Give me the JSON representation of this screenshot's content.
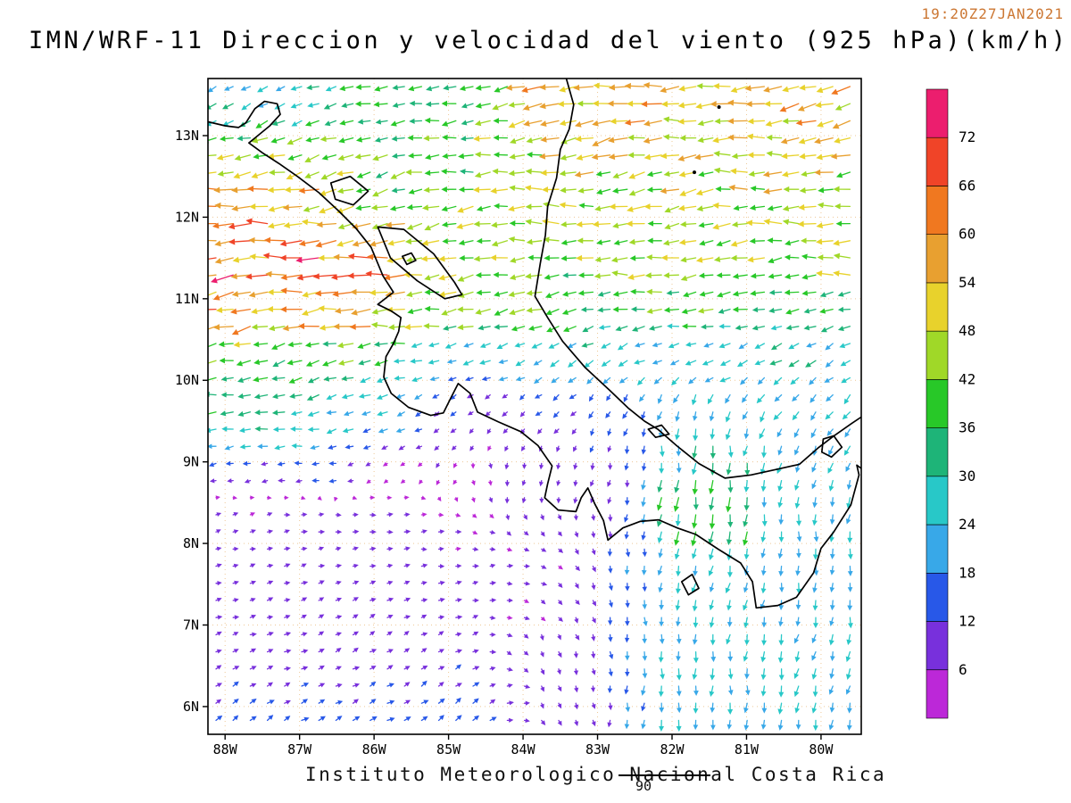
{
  "header": {
    "title": "IMN/WRF-11 Direccion y velocidad del viento (925 hPa)(km/h)",
    "timestamp": "19:20Z27JAN2021"
  },
  "footer": {
    "credit": "Instituto Meteorologico Nacional Costa Rica",
    "overlay_label": "90"
  },
  "axes": {
    "lat_tick_labels": [
      "13N",
      "12N",
      "11N",
      "10N",
      "9N",
      "8N",
      "7N",
      "6N"
    ],
    "lat_tick_values": [
      13,
      12,
      11,
      10,
      9,
      8,
      7,
      6
    ],
    "lon_tick_labels": [
      "88W",
      "87W",
      "86W",
      "85W",
      "84W",
      "83W",
      "82W",
      "81W",
      "80W"
    ],
    "lon_tick_values": [
      -88,
      -87,
      -86,
      -85,
      -84,
      -83,
      -82,
      -81,
      -80
    ],
    "lon_range": [
      -88.23,
      -79.46
    ],
    "lat_range": [
      5.66,
      13.7
    ]
  },
  "colorbar": {
    "tick_labels": [
      "72",
      "66",
      "60",
      "54",
      "48",
      "42",
      "36",
      "30",
      "24",
      "18",
      "12",
      "6"
    ],
    "colors_low_to_high": [
      "#bc28d8",
      "#7830dc",
      "#2858e8",
      "#38a8e8",
      "#28c8c8",
      "#1eb478",
      "#28c828",
      "#a0d828",
      "#e8d22c",
      "#e8a030",
      "#f07820",
      "#f04428",
      "#ec1e6e"
    ]
  },
  "chart_data": {
    "type": "vector-field-map",
    "title": "IMN/WRF-11 Direccion y velocidad del viento (925 hPa)(km/h)",
    "valid_time": "19:20Z27JAN2021",
    "variable": "wind direction and speed",
    "level": "925 hPa",
    "units": "km/h",
    "speed_bins_kmh": [
      6,
      12,
      18,
      24,
      30,
      36,
      42,
      48,
      54,
      60,
      66,
      72
    ],
    "lon_range_deg": [
      -88.23,
      -79.46
    ],
    "lat_range_deg": [
      5.66,
      13.7
    ],
    "conventions": "dir = direction wind blows toward, degrees math convention (0=E, 90=N); spd in km/h",
    "flow_regions": [
      {
        "name": "top-left-cyan",
        "lat": [
          12.9,
          13.8
        ],
        "lon": [
          -88.3,
          -86.5
        ],
        "dir": 203,
        "spd": 26
      },
      {
        "name": "top-mid-green",
        "lat": [
          12.9,
          13.8
        ],
        "lon": [
          -86.5,
          -84.2
        ],
        "dir": 193,
        "spd": 36
      },
      {
        "name": "top-right-yellow",
        "lat": [
          12.9,
          13.8
        ],
        "lon": [
          -84.2,
          -79.4
        ],
        "dir": 188,
        "spd": 55
      },
      {
        "name": "nicaragua-pacific",
        "lat": [
          11.9,
          12.9
        ],
        "lon": [
          -88.3,
          -86.3
        ],
        "dir": 189,
        "spd": 55
      },
      {
        "name": "nicaragua-inland",
        "lat": [
          11.9,
          12.9
        ],
        "lon": [
          -86.3,
          -84.2
        ],
        "dir": 191,
        "spd": 40
      },
      {
        "name": "caribbean-north",
        "lat": [
          11.9,
          12.9
        ],
        "lon": [
          -84.2,
          -79.4
        ],
        "dir": 186,
        "spd": 47
      },
      {
        "name": "papagayo-jet",
        "lat": [
          10.8,
          11.7
        ],
        "lon": [
          -88.3,
          -85.6
        ],
        "dir": 186,
        "spd": 64,
        "w": 1.5
      },
      {
        "name": "lake-district",
        "lat": [
          10.9,
          11.9
        ],
        "lon": [
          -85.6,
          -84.6
        ],
        "dir": 188,
        "spd": 48
      },
      {
        "name": "caribbean-central",
        "lat": [
          10.9,
          11.9
        ],
        "lon": [
          -84.6,
          -79.4
        ],
        "dir": 185,
        "spd": 44
      },
      {
        "name": "guanacaste-pacific",
        "lat": [
          10.3,
          10.9
        ],
        "lon": [
          -88.3,
          -85.6
        ],
        "dir": 191,
        "spd": 45
      },
      {
        "name": "costa-rica-north",
        "lat": [
          10.3,
          10.9
        ],
        "lon": [
          -85.6,
          -83.6
        ],
        "dir": 193,
        "spd": 36
      },
      {
        "name": "caribbean-coast-cr",
        "lat": [
          10.3,
          10.9
        ],
        "lon": [
          -83.6,
          -79.4
        ],
        "dir": 197,
        "spd": 29
      },
      {
        "name": "pacific-west-green",
        "lat": [
          9.7,
          10.3
        ],
        "lon": [
          -88.3,
          -85.5
        ],
        "dir": 192,
        "spd": 33
      },
      {
        "name": "central-valley-weak",
        "lat": [
          9.7,
          10.3
        ],
        "lon": [
          -85.5,
          -83.5
        ],
        "dir": 218,
        "spd": 13
      },
      {
        "name": "limon-offshore",
        "lat": [
          9.7,
          10.3
        ],
        "lon": [
          -83.5,
          -81.0
        ],
        "dir": 212,
        "spd": 22
      },
      {
        "name": "caribbean-east",
        "lat": [
          9.7,
          10.3
        ],
        "lon": [
          -81.0,
          -79.4
        ],
        "dir": 218,
        "spd": 27
      },
      {
        "name": "west-basin-green",
        "lat": [
          8.9,
          9.7
        ],
        "lon": [
          -88.3,
          -86.5
        ],
        "dir": 192,
        "spd": 31
      },
      {
        "name": "west-basin-cyan",
        "lat": [
          8.9,
          9.7
        ],
        "lon": [
          -86.5,
          -85.0
        ],
        "dir": 202,
        "spd": 16
      },
      {
        "name": "lee-weak-purple",
        "lat": [
          8.6,
          9.7
        ],
        "lon": [
          -85.0,
          -82.9
        ],
        "dir": 240,
        "spd": 8
      },
      {
        "name": "bocas-blue",
        "lat": [
          8.9,
          9.7
        ],
        "lon": [
          -82.9,
          -82.1
        ],
        "dir": 262,
        "spd": 15
      },
      {
        "name": "chiriqui-gap",
        "lat": [
          8.6,
          9.7
        ],
        "lon": [
          -82.1,
          -80.9
        ],
        "dir": 263,
        "spd": 30,
        "w": 1.2
      },
      {
        "name": "panama-mid",
        "lat": [
          8.6,
          9.7
        ],
        "lon": [
          -80.9,
          -79.4
        ],
        "dir": 252,
        "spd": 23
      },
      {
        "name": "gulf-chiriqui-gusts",
        "lat": [
          8.2,
          8.6
        ],
        "lon": [
          -82.0,
          -81.1
        ],
        "dir": 258,
        "spd": 46,
        "w": 3
      },
      {
        "name": "southwest-return-flow",
        "lat": [
          8.1,
          8.9
        ],
        "lon": [
          -88.3,
          -84.6
        ],
        "dir": 8,
        "spd": 7
      },
      {
        "name": "osa-weak",
        "lat": [
          8.1,
          8.9
        ],
        "lon": [
          -84.6,
          -82.9
        ],
        "dir": 278,
        "spd": 9
      },
      {
        "name": "burica-blue",
        "lat": [
          8.1,
          8.9
        ],
        "lon": [
          -82.9,
          -82.1
        ],
        "dir": 268,
        "spd": 13
      },
      {
        "name": "chiriqui-south",
        "lat": [
          8.1,
          8.6
        ],
        "lon": [
          -82.1,
          -80.9
        ],
        "dir": 262,
        "spd": 19
      },
      {
        "name": "azuero-east",
        "lat": [
          8.1,
          8.9
        ],
        "lon": [
          -80.9,
          -79.4
        ],
        "dir": 258,
        "spd": 25
      },
      {
        "name": "south-basin-east-flow",
        "lat": [
          7.2,
          8.1
        ],
        "lon": [
          -88.3,
          -83.5
        ],
        "dir": 12,
        "spd": 8
      },
      {
        "name": "south-central-weak",
        "lat": [
          7.2,
          8.1
        ],
        "lon": [
          -83.5,
          -82.5
        ],
        "dir": 282,
        "spd": 11
      },
      {
        "name": "gulf-panama-south",
        "lat": [
          7.2,
          8.1
        ],
        "lon": [
          -82.5,
          -79.4
        ],
        "dir": 265,
        "spd": 22
      },
      {
        "name": "bottom-edge-blue",
        "lat": [
          5.6,
          6.1
        ],
        "lon": [
          -88.3,
          -84.2
        ],
        "dir": 32,
        "spd": 15,
        "w": 1.5
      },
      {
        "name": "bottom-west-ne-flow",
        "lat": [
          6.1,
          7.2
        ],
        "lon": [
          -88.3,
          -84.2
        ],
        "dir": 25,
        "spd": 10
      },
      {
        "name": "bottom-central-weak",
        "lat": [
          5.6,
          7.2
        ],
        "lon": [
          -84.2,
          -82.6
        ],
        "dir": 290,
        "spd": 9
      },
      {
        "name": "bottom-right-teal",
        "lat": [
          5.6,
          7.2
        ],
        "lon": [
          -82.6,
          -79.4
        ],
        "dir": 262,
        "spd": 24
      }
    ]
  },
  "map": {
    "gridline_color": "#eec896",
    "coast_color": "#000000",
    "coastlines": [
      [
        [
          -88.23,
          13.17
        ],
        [
          -88.0,
          13.12
        ],
        [
          -87.82,
          13.1
        ],
        [
          -87.72,
          13.16
        ],
        [
          -87.6,
          13.33
        ],
        [
          -87.47,
          13.42
        ],
        [
          -87.3,
          13.39
        ],
        [
          -87.26,
          13.26
        ],
        [
          -87.4,
          13.12
        ],
        [
          -87.56,
          13.0
        ],
        [
          -87.68,
          12.91
        ],
        [
          -87.5,
          12.79
        ],
        [
          -87.28,
          12.66
        ],
        [
          -87.03,
          12.5
        ],
        [
          -86.74,
          12.3
        ],
        [
          -86.48,
          12.08
        ],
        [
          -86.24,
          11.86
        ],
        [
          -86.04,
          11.63
        ],
        [
          -85.88,
          11.28
        ],
        [
          -85.74,
          11.08
        ],
        [
          -85.95,
          10.93
        ],
        [
          -85.77,
          10.85
        ],
        [
          -85.64,
          10.77
        ],
        [
          -85.67,
          10.6
        ],
        [
          -85.74,
          10.45
        ],
        [
          -85.84,
          10.29
        ],
        [
          -85.87,
          10.04
        ],
        [
          -85.77,
          9.84
        ],
        [
          -85.54,
          9.67
        ],
        [
          -85.24,
          9.57
        ],
        [
          -85.07,
          9.6
        ],
        [
          -84.96,
          9.8
        ],
        [
          -84.87,
          9.96
        ],
        [
          -84.71,
          9.84
        ],
        [
          -84.61,
          9.61
        ],
        [
          -84.33,
          9.49
        ],
        [
          -84.03,
          9.37
        ],
        [
          -83.8,
          9.2
        ],
        [
          -83.61,
          8.95
        ],
        [
          -83.67,
          8.73
        ],
        [
          -83.71,
          8.56
        ],
        [
          -83.53,
          8.41
        ],
        [
          -83.29,
          8.39
        ],
        [
          -83.22,
          8.56
        ],
        [
          -83.13,
          8.68
        ],
        [
          -83.04,
          8.49
        ],
        [
          -82.92,
          8.28
        ],
        [
          -82.86,
          8.04
        ],
        [
          -82.66,
          8.19
        ],
        [
          -82.43,
          8.27
        ],
        [
          -82.18,
          8.29
        ],
        [
          -81.93,
          8.19
        ],
        [
          -81.68,
          8.11
        ],
        [
          -81.38,
          7.93
        ],
        [
          -81.08,
          7.76
        ],
        [
          -80.92,
          7.53
        ],
        [
          -80.87,
          7.21
        ],
        [
          -80.58,
          7.24
        ],
        [
          -80.33,
          7.34
        ],
        [
          -80.1,
          7.64
        ],
        [
          -80.0,
          7.94
        ],
        [
          -79.83,
          8.14
        ],
        [
          -79.6,
          8.47
        ],
        [
          -79.49,
          8.84
        ],
        [
          -79.52,
          8.96
        ],
        [
          -79.46,
          8.92
        ]
      ],
      [
        [
          -83.42,
          13.7
        ],
        [
          -83.32,
          13.38
        ],
        [
          -83.38,
          13.08
        ],
        [
          -83.5,
          12.83
        ],
        [
          -83.55,
          12.48
        ],
        [
          -83.67,
          12.13
        ],
        [
          -83.7,
          11.78
        ],
        [
          -83.77,
          11.43
        ],
        [
          -83.84,
          11.03
        ],
        [
          -83.67,
          10.77
        ],
        [
          -83.47,
          10.48
        ],
        [
          -83.17,
          10.16
        ],
        [
          -82.84,
          9.88
        ],
        [
          -82.59,
          9.66
        ],
        [
          -82.37,
          9.5
        ],
        [
          -82.19,
          9.4
        ],
        [
          -81.94,
          9.2
        ],
        [
          -81.64,
          8.98
        ],
        [
          -81.29,
          8.8
        ],
        [
          -80.94,
          8.84
        ],
        [
          -80.59,
          8.91
        ],
        [
          -80.29,
          8.97
        ],
        [
          -80.04,
          9.17
        ],
        [
          -79.84,
          9.31
        ],
        [
          -79.59,
          9.47
        ],
        [
          -79.46,
          9.55
        ]
      ]
    ],
    "lakes": [
      [
        [
          -85.95,
          11.88
        ],
        [
          -85.6,
          11.85
        ],
        [
          -85.2,
          11.55
        ],
        [
          -84.92,
          11.2
        ],
        [
          -84.82,
          11.05
        ],
        [
          -85.05,
          11.0
        ],
        [
          -85.42,
          11.22
        ],
        [
          -85.78,
          11.5
        ]
      ],
      [
        [
          -86.58,
          12.42
        ],
        [
          -86.32,
          12.5
        ],
        [
          -86.08,
          12.32
        ],
        [
          -86.28,
          12.15
        ],
        [
          -86.52,
          12.22
        ]
      ]
    ],
    "islands": [
      [
        [
          -85.62,
          11.52
        ],
        [
          -85.5,
          11.56
        ],
        [
          -85.44,
          11.47
        ],
        [
          -85.56,
          11.42
        ]
      ],
      [
        [
          -81.87,
          7.53
        ],
        [
          -81.73,
          7.62
        ],
        [
          -81.64,
          7.45
        ],
        [
          -81.78,
          7.37
        ]
      ],
      [
        [
          -79.97,
          9.28
        ],
        [
          -79.83,
          9.32
        ],
        [
          -79.72,
          9.18
        ],
        [
          -79.86,
          9.06
        ],
        [
          -79.99,
          9.12
        ]
      ],
      [
        [
          -82.32,
          9.4
        ],
        [
          -82.14,
          9.45
        ],
        [
          -82.04,
          9.34
        ],
        [
          -82.22,
          9.3
        ]
      ]
    ],
    "dots": [
      [
        -81.7,
        12.55
      ],
      [
        -81.37,
        13.35
      ]
    ]
  }
}
